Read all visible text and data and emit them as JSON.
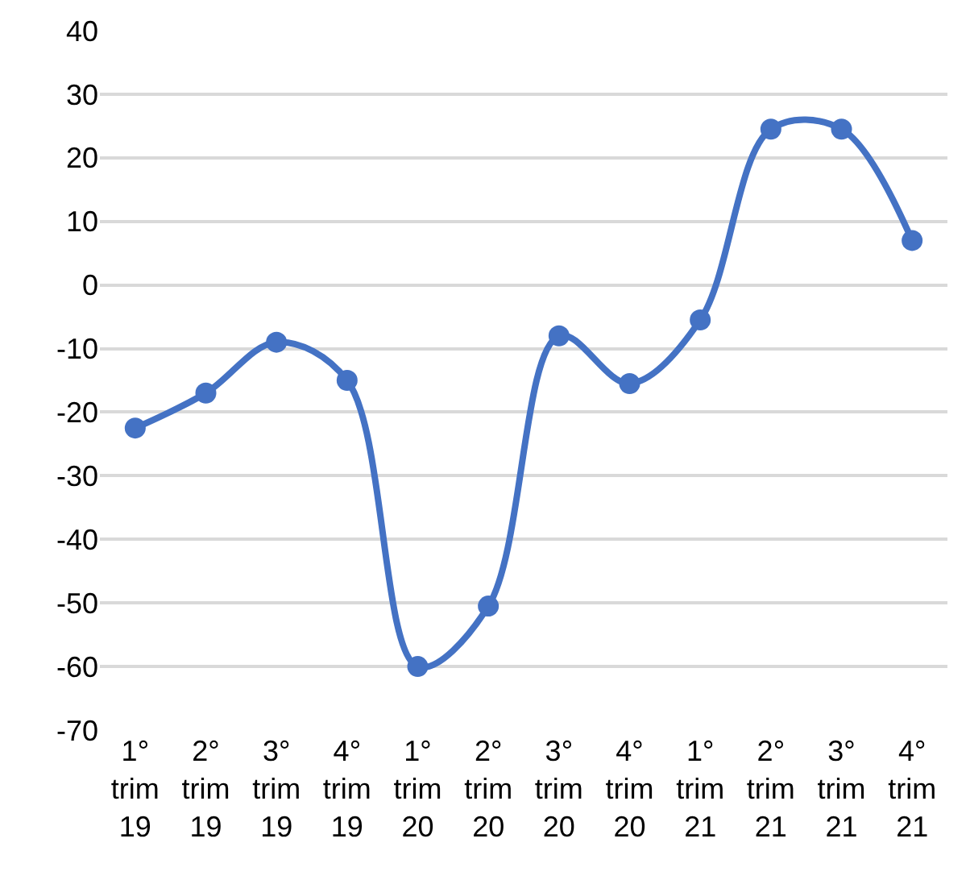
{
  "chart_data": {
    "type": "line",
    "categories": [
      "1°\ntrim\n19",
      "2°\ntrim\n19",
      "3°\ntrim\n19",
      "4°\ntrim\n19",
      "1°\ntrim\n20",
      "2°\ntrim\n20",
      "3°\ntrim\n20",
      "4°\ntrim\n20",
      "1°\ntrim\n21",
      "2°\ntrim\n21",
      "3°\ntrim\n21",
      "4°\ntrim\n21"
    ],
    "series": [
      {
        "color": "#4472c4",
        "values": [
          -22.5,
          -17,
          -9,
          -15,
          -60,
          -50.5,
          -8,
          -15.5,
          -5.5,
          24.5,
          24.5,
          7
        ]
      }
    ],
    "ylim": [
      -70,
      40
    ],
    "yticks": [
      -70,
      -60,
      -50,
      -40,
      -30,
      -20,
      -10,
      0,
      10,
      20,
      30,
      40
    ],
    "grid": "y",
    "marker": "circle",
    "line_style": "solid"
  }
}
